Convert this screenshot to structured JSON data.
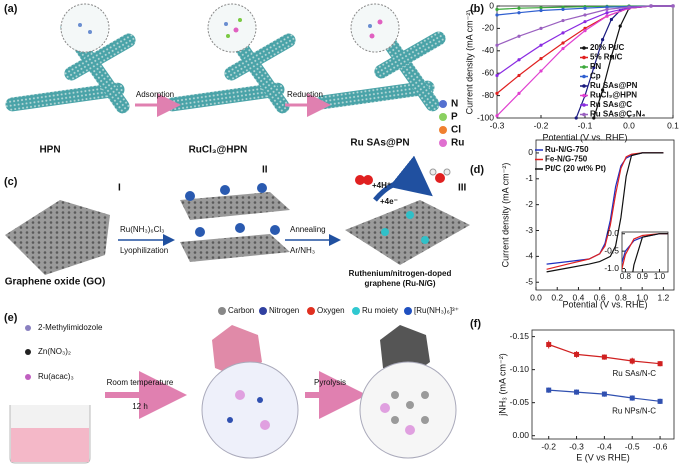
{
  "panels": {
    "a": "(a)",
    "b": "(b)",
    "c": "(c)",
    "d": "(d)",
    "e": "(e)",
    "f": "(f)"
  },
  "schematic_a": {
    "stages": [
      "HPN",
      "RuCl₃@HPN",
      "Ru SAs@PN"
    ],
    "steps": [
      "Adsorption",
      "Reduction"
    ],
    "legend": [
      "N",
      "P",
      "Cl",
      "Ru"
    ]
  },
  "schematic_c": {
    "stages": [
      "I",
      "II",
      "III"
    ],
    "start": "Graphene oxide (GO)",
    "step1": [
      "Ru(NH₃)₆Cl₃",
      "Lyophilization"
    ],
    "step2": [
      "Annealing",
      "Ar/NH₃"
    ],
    "product": [
      "Ruthenium/nitrogen-doped",
      "graphene (Ru-N/G)"
    ],
    "reaction": [
      "+4H⁺",
      "+4e⁻"
    ]
  },
  "schematic_e": {
    "reagents": [
      "2-Methylimidozole",
      "Zn(NO₃)₂",
      "Ru(acac)₃"
    ],
    "step1": [
      "Room temperature",
      "12 h"
    ],
    "step2": "Pyrolysis",
    "legend": [
      "Carbon",
      "Nitrogen",
      "Oxygen",
      "Ru moiety",
      "[Ru(NH₃)₆]³⁺"
    ]
  },
  "chart_data": [
    {
      "type": "line",
      "x_label": "Potential (V vs. RHE)",
      "y_label": "Current density (mA cm⁻²)",
      "xlim": [
        -0.3,
        0.1
      ],
      "ylim": [
        -100,
        0
      ],
      "xticks": [
        -0.3,
        -0.2,
        -0.1,
        {
          "value": 0,
          "label": "0.0"
        },
        0.1
      ],
      "yticks": [
        0,
        -20,
        -40,
        -60,
        -80,
        -100
      ],
      "legend": "lower right",
      "markers": true,
      "series": [
        {
          "name": "20% Pt/C",
          "color": "#111111",
          "x": [
            -0.08,
            -0.06,
            -0.04,
            -0.02,
            0,
            0.05,
            0.1
          ],
          "values": [
            -100,
            -75,
            -45,
            -18,
            -2,
            0,
            0
          ]
        },
        {
          "name": "5% Ru/C",
          "color": "#e02020",
          "x": [
            -0.3,
            -0.25,
            -0.2,
            -0.15,
            -0.1,
            -0.05,
            0,
            0.05,
            0.1
          ],
          "values": [
            -78,
            -62,
            -47,
            -33,
            -20,
            -9,
            -2,
            0,
            0
          ]
        },
        {
          "name": "PN",
          "color": "#3aa83a",
          "x": [
            -0.3,
            -0.25,
            -0.2,
            -0.15,
            -0.1,
            -0.05,
            0,
            0.05,
            0.1
          ],
          "values": [
            -3,
            -2,
            -1.5,
            -1,
            -0.5,
            -0.3,
            0,
            0,
            0
          ]
        },
        {
          "name": "Cp",
          "color": "#3060d0",
          "x": [
            -0.3,
            -0.25,
            -0.2,
            -0.15,
            -0.1,
            -0.05,
            0,
            0.05,
            0.1
          ],
          "values": [
            -8,
            -6,
            -4,
            -3,
            -2,
            -1,
            -0.5,
            0,
            0
          ]
        },
        {
          "name": "Ru SAs@PN",
          "color": "#1a1a80",
          "x": [
            -0.12,
            -0.1,
            -0.08,
            -0.06,
            -0.04,
            -0.02,
            0,
            0.05,
            0.1
          ],
          "values": [
            -100,
            -80,
            -55,
            -30,
            -12,
            -4,
            -1,
            0,
            0
          ]
        },
        {
          "name": "RuCl₃@HPN",
          "color": "#e040d0",
          "x": [
            -0.3,
            -0.25,
            -0.2,
            -0.15,
            -0.1,
            -0.05,
            0,
            0.05,
            0.1
          ],
          "values": [
            -98,
            -78,
            -58,
            -38,
            -22,
            -9,
            -2,
            0,
            0
          ]
        },
        {
          "name": "Ru SAs@C",
          "color": "#8a2be2",
          "x": [
            -0.3,
            -0.25,
            -0.2,
            -0.15,
            -0.1,
            -0.05,
            0,
            0.05,
            0.1
          ],
          "values": [
            -62,
            -48,
            -35,
            -24,
            -14,
            -6,
            -1.5,
            0,
            0
          ]
        },
        {
          "name": "Ru SAs@C₃N₄",
          "color": "#9a60c0",
          "x": [
            -0.3,
            -0.25,
            -0.2,
            -0.15,
            -0.1,
            -0.05,
            0,
            0.05,
            0.1
          ],
          "values": [
            -35,
            -27,
            -20,
            -13,
            -8,
            -3,
            -1,
            0,
            0
          ]
        }
      ]
    },
    {
      "type": "line",
      "x_label": "Potential (V vs. RHE)",
      "y_label": "Current density (mA cm⁻²)",
      "xlim": [
        0,
        1.3
      ],
      "ylim": [
        -5.3,
        0.5
      ],
      "xticks": [
        {
          "value": 0,
          "label": "0.0"
        },
        0.2,
        0.4,
        0.6,
        0.8,
        {
          "value": 1,
          "label": "1.0"
        },
        1.2
      ],
      "yticks": [
        0,
        -1,
        -2,
        -3,
        -4,
        -5
      ],
      "legend": "upper left",
      "markers": false,
      "x": [
        0.1,
        0.3,
        0.5,
        0.6,
        0.65,
        0.7,
        0.75,
        0.8,
        0.85,
        0.9,
        1.0,
        1.2
      ],
      "series": [
        {
          "name": "Ru-N/G-750",
          "color": "#2030c0",
          "values": [
            -4.3,
            -4.2,
            -4.1,
            -3.9,
            -3.5,
            -2.6,
            -1.3,
            -0.5,
            -0.2,
            -0.1,
            0,
            0
          ]
        },
        {
          "name": "Fe-N/G-750",
          "color": "#e02020",
          "values": [
            -4.5,
            -4.3,
            -4.1,
            -3.9,
            -3.6,
            -2.8,
            -1.6,
            -0.6,
            -0.15,
            -0.05,
            0,
            0
          ]
        },
        {
          "name": "Pt/C (20 wt% Pt)",
          "color": "#111111",
          "values": [
            -4.6,
            -4.45,
            -4.3,
            -4.2,
            -4.1,
            -4.0,
            -3.6,
            -2.5,
            -0.9,
            -0.1,
            0,
            0
          ]
        }
      ],
      "inset": {
        "xlim": [
          0.78,
          1.05
        ],
        "ylim": [
          -1.1,
          0.05
        ],
        "xticks": [
          0.8,
          0.9,
          {
            "value": 1,
            "label": "1.0"
          }
        ],
        "yticks": [
          {
            "value": 0,
            "label": "0.0"
          },
          -0.5,
          {
            "value": -1,
            "label": "-1.0"
          }
        ]
      }
    },
    {
      "type": "line",
      "x_label": "E (V vs RHE)",
      "y_label": "jNH₃ (mA cm⁻²)",
      "xlim": [
        -0.14,
        -0.65
      ],
      "ylim": [
        0.005,
        -0.16
      ],
      "xticks": [
        -0.2,
        -0.3,
        -0.4,
        -0.5,
        -0.6
      ],
      "yticks": [
        -0.15,
        {
          "value": -0.1,
          "label": "-0.10"
        },
        -0.05,
        {
          "value": 0,
          "label": "0.00"
        }
      ],
      "legend": "inline",
      "markers": true,
      "x": [
        -0.2,
        -0.3,
        -0.4,
        -0.5,
        -0.6
      ],
      "series": [
        {
          "name": "Ru SAs/N-C",
          "color": "#d02020",
          "values": [
            -0.138,
            -0.123,
            -0.119,
            -0.113,
            -0.109
          ],
          "errors": [
            0.006,
            0.005,
            0.004,
            0.005,
            0.004
          ]
        },
        {
          "name": "Ru NPs/N-C",
          "color": "#3050b0",
          "values": [
            -0.069,
            -0.066,
            -0.063,
            -0.057,
            -0.052
          ],
          "errors": [
            0.004,
            0.004,
            0.004,
            0.004,
            0.004
          ]
        }
      ]
    }
  ]
}
